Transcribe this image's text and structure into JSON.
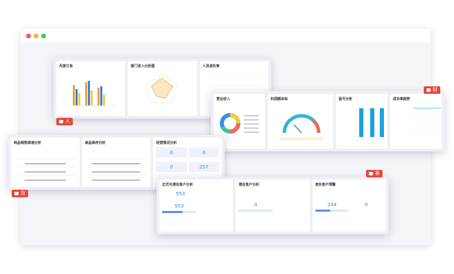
{
  "groups": [
    {
      "tag": "人",
      "panels": [
        {
          "title": "月度订单"
        },
        {
          "title": "部门收入分析图"
        },
        {
          "title": "人员流失率"
        }
      ]
    },
    {
      "tag": "财",
      "panels": [
        {
          "title": "营业收入"
        },
        {
          "title": "利润额目标"
        },
        {
          "title": "盈亏分析"
        },
        {
          "title": "成本率趋势"
        }
      ]
    },
    {
      "tag": "货",
      "panels": [
        {
          "title": "商品销售渠道分析"
        },
        {
          "title": "商品库存分析"
        },
        {
          "title": "经营情况分析",
          "values": [
            0,
            0,
            0,
            257
          ]
        }
      ]
    },
    {
      "tag": "客",
      "panels": [
        {
          "title": "正式与潜在客户分析",
          "values": [
            553,
            553
          ]
        },
        {
          "title": "潜在客户分析",
          "values": [
            0
          ]
        },
        {
          "title": "流失客户预警",
          "values": [
            244,
            0
          ]
        }
      ]
    }
  ]
}
